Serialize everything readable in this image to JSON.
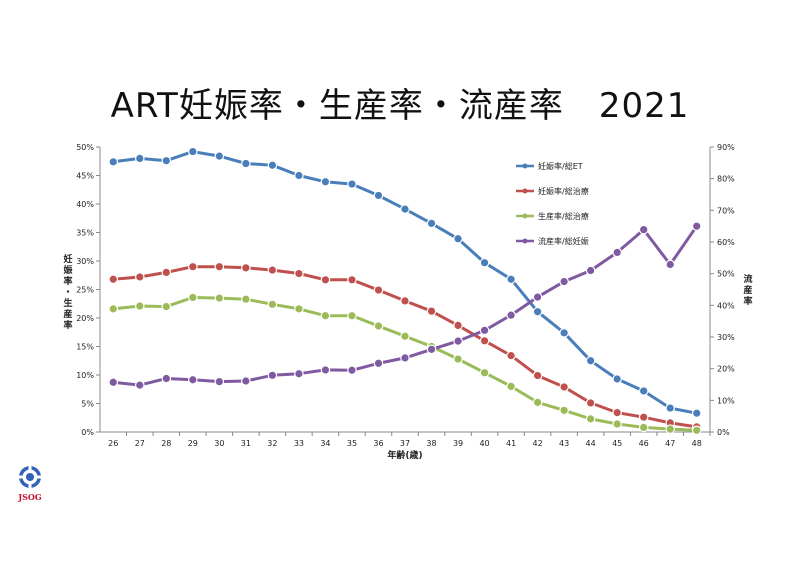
{
  "title": "ART妊娠率・生産率・流産率　2021",
  "logo": {
    "icon": "jsog-logo-icon",
    "text": "JSOG"
  },
  "chart_data": {
    "type": "line",
    "x": [
      26,
      27,
      28,
      29,
      30,
      31,
      32,
      33,
      34,
      35,
      36,
      37,
      38,
      39,
      40,
      41,
      42,
      43,
      44,
      45,
      46,
      47,
      48
    ],
    "xlabel": "年齢(歳)",
    "ylabel_left": "妊娠率・生産率",
    "ylabel_right": "流産率",
    "ylim_left": [
      0,
      50
    ],
    "ylim_right": [
      0,
      90
    ],
    "yticks_left": [
      "0%",
      "5%",
      "10%",
      "15%",
      "20%",
      "25%",
      "30%",
      "35%",
      "40%",
      "45%",
      "50%"
    ],
    "yticks_right": [
      "0%",
      "10%",
      "20%",
      "30%",
      "40%",
      "50%",
      "60%",
      "70%",
      "80%",
      "90%"
    ],
    "grid": false,
    "legend_position": "top-right",
    "series": [
      {
        "name": "妊娠率/総ET",
        "axis": "left",
        "color": "#4a7ebb",
        "values": [
          47.4,
          48.0,
          47.6,
          49.2,
          48.4,
          47.1,
          46.8,
          45.0,
          43.9,
          43.5,
          41.5,
          39.1,
          36.6,
          33.9,
          29.7,
          26.8,
          21.1,
          17.4,
          12.5,
          9.3,
          7.2,
          4.2,
          3.3
        ]
      },
      {
        "name": "妊娠率/総治療",
        "axis": "left",
        "color": "#c0504d",
        "values": [
          26.8,
          27.2,
          28.0,
          29.0,
          29.0,
          28.8,
          28.4,
          27.8,
          26.7,
          26.7,
          24.9,
          23.0,
          21.2,
          18.7,
          16.0,
          13.4,
          9.9,
          7.9,
          5.1,
          3.4,
          2.6,
          1.6,
          0.9
        ]
      },
      {
        "name": "生産率/総治療",
        "axis": "left",
        "color": "#9bbb59",
        "values": [
          21.6,
          22.1,
          22.0,
          23.6,
          23.5,
          23.3,
          22.4,
          21.6,
          20.4,
          20.4,
          18.6,
          16.8,
          15.0,
          12.8,
          10.4,
          8.0,
          5.2,
          3.8,
          2.3,
          1.4,
          0.8,
          0.5,
          0.3
        ]
      },
      {
        "name": "流産率/総妊娠",
        "axis": "right",
        "color": "#7f5aa0",
        "values": [
          15.7,
          14.8,
          16.9,
          16.5,
          15.9,
          16.1,
          17.9,
          18.4,
          19.6,
          19.5,
          21.7,
          23.4,
          26.1,
          28.7,
          32.1,
          36.9,
          42.6,
          47.5,
          51.0,
          56.7,
          63.9,
          52.9,
          65.0
        ]
      }
    ]
  }
}
